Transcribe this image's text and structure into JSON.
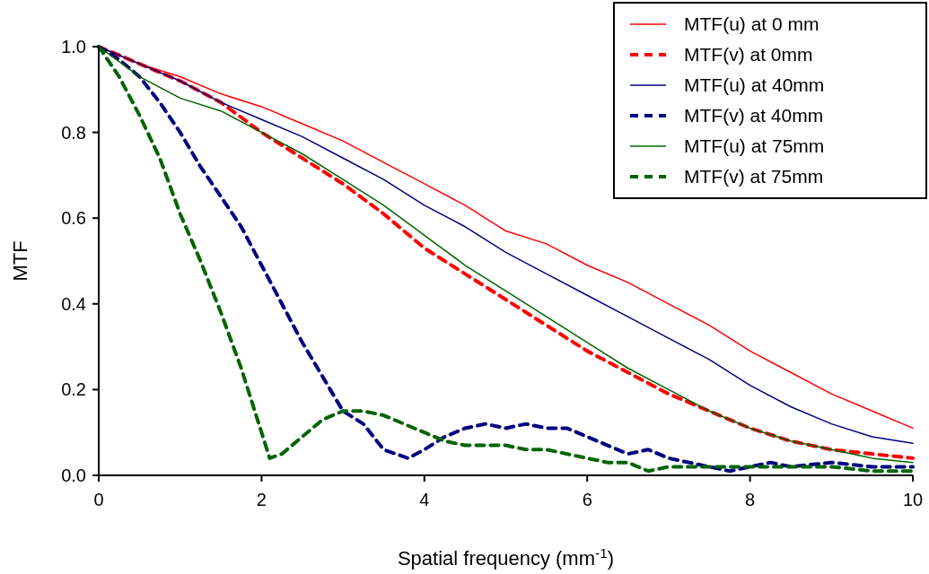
{
  "chart_data": {
    "type": "line",
    "xlabel": "Spatial frequency (mm$^{-1}$)",
    "ylabel": "MTF",
    "xlim": [
      0,
      10
    ],
    "ylim": [
      0,
      1
    ],
    "xticks": [
      0,
      2,
      4,
      6,
      8,
      10
    ],
    "yticks": [
      {
        "value": 0,
        "label": "0.0"
      },
      {
        "value": 0.2,
        "label": "0.2"
      },
      {
        "value": 0.4,
        "label": "0.4"
      },
      {
        "value": 0.6,
        "label": "0.6"
      },
      {
        "value": 0.8,
        "label": "0.8"
      },
      {
        "value": 1,
        "label": "1.0"
      }
    ],
    "grid": false,
    "legend": "top right",
    "marker": "none",
    "series": [
      {
        "name": "MTF(u) at 0 mm",
        "color": "#ff0000",
        "line_style": "solid",
        "x": [
          0,
          0.5,
          1,
          1.5,
          2,
          2.5,
          3,
          3.5,
          4,
          4.5,
          5,
          5.5,
          6,
          6.5,
          7,
          7.5,
          8,
          8.5,
          9,
          9.5,
          10
        ],
        "values": [
          1.0,
          0.96,
          0.93,
          0.89,
          0.86,
          0.82,
          0.78,
          0.73,
          0.68,
          0.63,
          0.57,
          0.54,
          0.49,
          0.45,
          0.4,
          0.35,
          0.29,
          0.24,
          0.19,
          0.15,
          0.11
        ]
      },
      {
        "name": "MTF(v) at 0mm",
        "color": "#ff0000",
        "line_style": "dashed",
        "x": [
          0,
          0.5,
          1,
          1.5,
          2,
          2.5,
          3,
          3.5,
          4,
          4.5,
          5,
          5.5,
          6,
          6.5,
          7,
          7.5,
          8,
          8.5,
          9,
          9.5,
          10
        ],
        "values": [
          1.0,
          0.96,
          0.92,
          0.87,
          0.8,
          0.74,
          0.68,
          0.61,
          0.53,
          0.47,
          0.41,
          0.35,
          0.29,
          0.24,
          0.19,
          0.15,
          0.11,
          0.08,
          0.06,
          0.05,
          0.04
        ]
      },
      {
        "name": "MTF(u) at 40mm",
        "color": "#000080",
        "line_style": "solid",
        "x": [
          0,
          0.5,
          1,
          1.5,
          2,
          2.5,
          3,
          3.5,
          4,
          4.5,
          5,
          5.5,
          6,
          6.5,
          7,
          7.5,
          8,
          8.5,
          9,
          9.5,
          10
        ],
        "values": [
          1.0,
          0.96,
          0.92,
          0.87,
          0.83,
          0.79,
          0.74,
          0.69,
          0.63,
          0.58,
          0.52,
          0.47,
          0.42,
          0.37,
          0.32,
          0.27,
          0.21,
          0.16,
          0.12,
          0.09,
          0.075
        ]
      },
      {
        "name": "MTF(v) at 40mm",
        "color": "#000080",
        "line_style": "dashed",
        "x": [
          0,
          0.25,
          0.5,
          0.75,
          1,
          1.25,
          1.5,
          1.75,
          2,
          2.25,
          2.5,
          2.75,
          3,
          3.25,
          3.5,
          3.8,
          4,
          4.25,
          4.5,
          4.75,
          5,
          5.25,
          5.5,
          5.75,
          6,
          6.25,
          6.5,
          6.75,
          7,
          7.25,
          7.5,
          7.75,
          8,
          8.25,
          8.5,
          9,
          9.5,
          10
        ],
        "values": [
          1.0,
          0.97,
          0.93,
          0.87,
          0.8,
          0.72,
          0.65,
          0.58,
          0.49,
          0.4,
          0.31,
          0.23,
          0.15,
          0.12,
          0.06,
          0.04,
          0.06,
          0.09,
          0.11,
          0.12,
          0.11,
          0.12,
          0.11,
          0.11,
          0.09,
          0.07,
          0.05,
          0.06,
          0.04,
          0.03,
          0.02,
          0.01,
          0.02,
          0.03,
          0.02,
          0.03,
          0.02,
          0.02
        ]
      },
      {
        "name": "MTF(u) at 75mm",
        "color": "#006400",
        "line_style": "solid",
        "x": [
          0,
          0.5,
          1,
          1.5,
          2,
          2.5,
          3,
          3.5,
          4,
          4.5,
          5,
          5.5,
          6,
          6.5,
          7,
          7.5,
          8,
          8.5,
          9,
          9.5,
          10
        ],
        "values": [
          1.0,
          0.93,
          0.88,
          0.85,
          0.8,
          0.75,
          0.69,
          0.63,
          0.56,
          0.49,
          0.43,
          0.37,
          0.31,
          0.25,
          0.2,
          0.15,
          0.11,
          0.08,
          0.06,
          0.04,
          0.03
        ]
      },
      {
        "name": "MTF(v) at 75mm",
        "color": "#006400",
        "line_style": "dashed",
        "x": [
          0,
          0.25,
          0.5,
          0.75,
          1,
          1.25,
          1.5,
          1.75,
          2,
          2.1,
          2.25,
          2.5,
          2.75,
          3,
          3.25,
          3.5,
          3.75,
          4,
          4.25,
          4.5,
          4.75,
          5,
          5.25,
          5.5,
          5.75,
          6,
          6.25,
          6.5,
          6.75,
          7,
          7.5,
          8,
          8.5,
          9,
          9.5,
          10
        ],
        "values": [
          1.0,
          0.93,
          0.84,
          0.74,
          0.61,
          0.5,
          0.38,
          0.25,
          0.1,
          0.04,
          0.05,
          0.09,
          0.13,
          0.15,
          0.15,
          0.14,
          0.12,
          0.1,
          0.08,
          0.07,
          0.07,
          0.07,
          0.06,
          0.06,
          0.05,
          0.04,
          0.03,
          0.03,
          0.01,
          0.02,
          0.02,
          0.02,
          0.02,
          0.02,
          0.01,
          0.01
        ]
      }
    ]
  }
}
